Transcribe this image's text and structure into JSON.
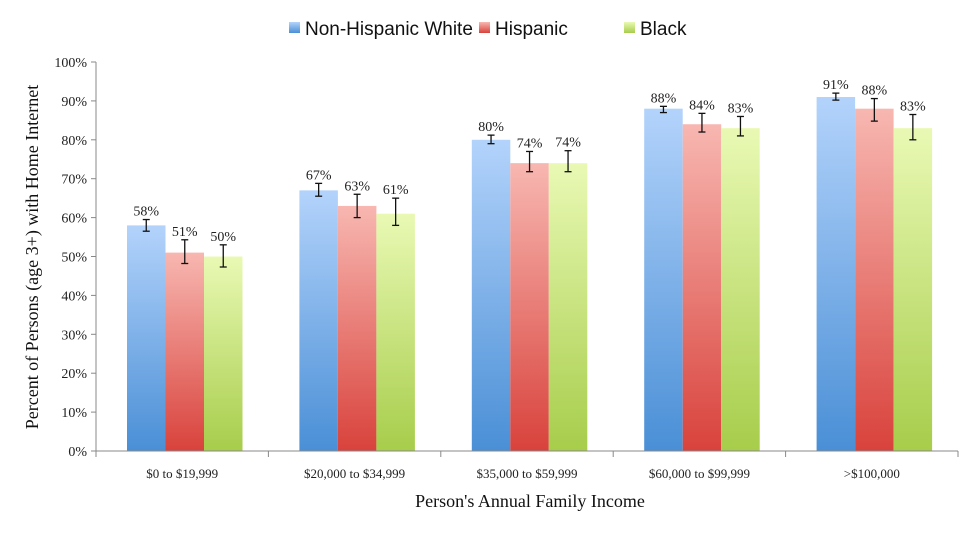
{
  "chart_data": {
    "type": "bar",
    "title": "",
    "xlabel": "Person's Annual Family Income",
    "ylabel": "Percent of Persons (age 3+) with Home Internet",
    "ylim": [
      0,
      100
    ],
    "y_ticks": [
      "0%",
      "10%",
      "20%",
      "30%",
      "40%",
      "50%",
      "60%",
      "70%",
      "80%",
      "90%",
      "100%"
    ],
    "y_tick_values": [
      0,
      10,
      20,
      30,
      40,
      50,
      60,
      70,
      80,
      90,
      100
    ],
    "grid": false,
    "legend_position": "top",
    "categories": [
      "$0 to $19,999",
      "$20,000 to $34,999",
      "$35,000 to $59,999",
      "$60,000 to $99,999",
      ">$100,000"
    ],
    "series": [
      {
        "name": "Non-Hispanic White",
        "color_top": "#b3d3fb",
        "color_bottom": "#4a8fd6",
        "values": [
          58,
          67,
          80,
          88,
          91
        ],
        "labels": [
          "58%",
          "67%",
          "80%",
          "88%",
          "91%"
        ],
        "error": [
          [
            56.5,
            59.5
          ],
          [
            65.5,
            68.8
          ],
          [
            79.0,
            81.2
          ],
          [
            87.0,
            88.6
          ],
          [
            90.2,
            92.0
          ]
        ]
      },
      {
        "name": "Hispanic",
        "color_top": "#f8b7b1",
        "color_bottom": "#d9423c",
        "values": [
          51,
          63,
          74,
          84,
          88
        ],
        "labels": [
          "51%",
          "63%",
          "74%",
          "84%",
          "88%"
        ],
        "error": [
          [
            48.2,
            54.3
          ],
          [
            60.0,
            66.0
          ],
          [
            71.8,
            77.0
          ],
          [
            82.0,
            86.8
          ],
          [
            84.8,
            90.6
          ]
        ]
      },
      {
        "name": "Black",
        "color_top": "#e9f9b4",
        "color_bottom": "#a7cd4b",
        "values": [
          50,
          61,
          74,
          83,
          83
        ],
        "labels": [
          "50%",
          "61%",
          "74%",
          "83%",
          "83%"
        ],
        "error": [
          [
            47.3,
            53.0
          ],
          [
            58.0,
            65.0
          ],
          [
            71.8,
            77.2
          ],
          [
            81.0,
            86.0
          ],
          [
            80.0,
            86.5
          ]
        ]
      }
    ]
  }
}
